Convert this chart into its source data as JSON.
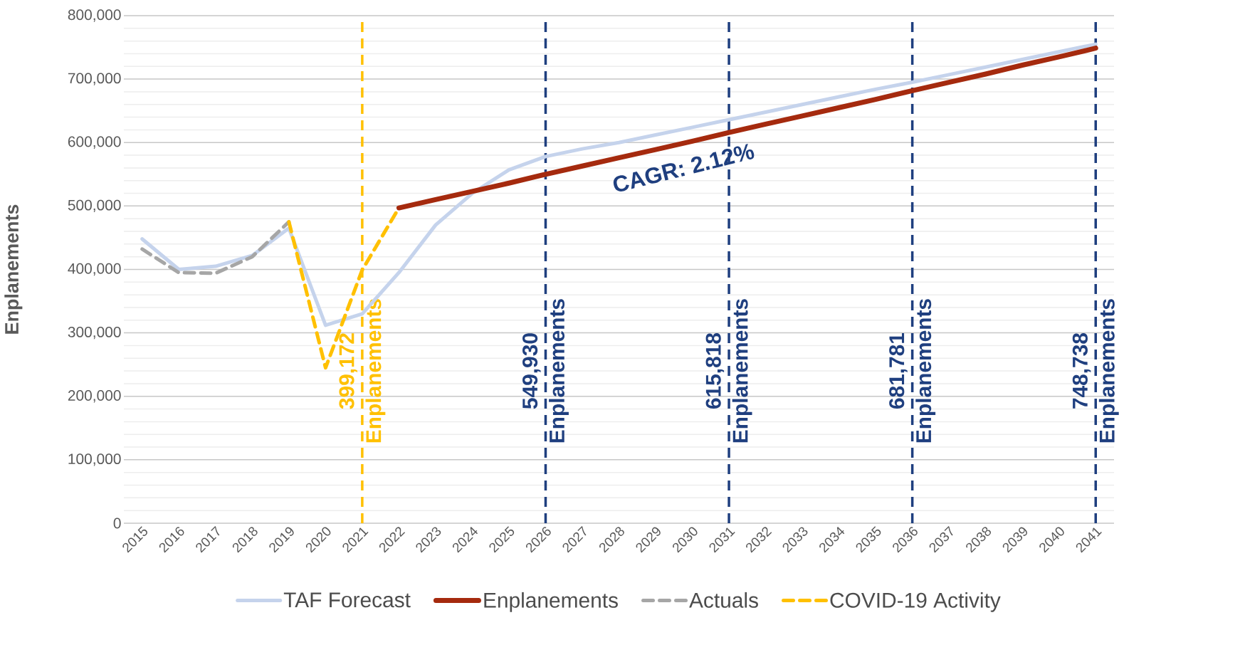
{
  "chart_data": {
    "type": "line",
    "ylabel": "Enplanements",
    "categories": [
      "2015",
      "2016",
      "2017",
      "2018",
      "2019",
      "2020",
      "2021",
      "2022",
      "2023",
      "2024",
      "2025",
      "2026",
      "2027",
      "2028",
      "2029",
      "2030",
      "2031",
      "2032",
      "2033",
      "2034",
      "2035",
      "2036",
      "2037",
      "2038",
      "2039",
      "2040",
      "2041"
    ],
    "series": [
      {
        "name": "TAF Forecast",
        "color": "#c5d3ec",
        "line_style": "solid",
        "values": [
          448000,
          400000,
          405000,
          422000,
          465000,
          312000,
          330000,
          395000,
          470000,
          520000,
          557000,
          578000,
          590000,
          600000,
          612000,
          624000,
          636000,
          648000,
          660000,
          672000,
          684000,
          695000,
          707000,
          719000,
          731000,
          743000,
          755000
        ]
      },
      {
        "name": "Enplanements",
        "color": "#a52a0e",
        "line_style": "solid",
        "values": [
          null,
          null,
          null,
          null,
          null,
          null,
          null,
          497000,
          510000,
          523000,
          536000,
          549930,
          563000,
          576000,
          589000,
          602000,
          615818,
          629000,
          642000,
          655000,
          668000,
          681781,
          695000,
          708000,
          722000,
          735000,
          748738
        ]
      },
      {
        "name": "Actuals",
        "color": "#a6a6a6",
        "line_style": "dashed",
        "values": [
          432000,
          395000,
          394000,
          420000,
          475000,
          null,
          null,
          null,
          null,
          null,
          null,
          null,
          null,
          null,
          null,
          null,
          null,
          null,
          null,
          null,
          null,
          null,
          null,
          null,
          null,
          null,
          null
        ]
      },
      {
        "name": "COVID-19 Activity",
        "color": "#ffc000",
        "line_style": "dashed",
        "values": [
          null,
          null,
          null,
          null,
          475000,
          245000,
          399172,
          497000,
          null,
          null,
          null,
          null,
          null,
          null,
          null,
          null,
          null,
          null,
          null,
          null,
          null,
          null,
          null,
          null,
          null,
          null,
          null
        ]
      }
    ],
    "ylim": [
      0,
      800000
    ],
    "yticks": [
      {
        "value": 0,
        "label": "0"
      },
      {
        "value": 100000,
        "label": "100,000"
      },
      {
        "value": 200000,
        "label": "200,000"
      },
      {
        "value": 300000,
        "label": "300,000"
      },
      {
        "value": 400000,
        "label": "400,000"
      },
      {
        "value": 500000,
        "label": "500,000"
      },
      {
        "value": 600000,
        "label": "600,000"
      },
      {
        "value": 700000,
        "label": "700,000"
      },
      {
        "value": 800000,
        "label": "800,000"
      }
    ],
    "ref_lines": [
      {
        "axis": "x",
        "value": "2021",
        "label": "399,172 Enplanements",
        "color": "#ffc000",
        "line_style": "dashed"
      },
      {
        "axis": "x",
        "value": "2026",
        "label": "549,930 Enplanements",
        "color": "#1f3f7f",
        "line_style": "dashed"
      },
      {
        "axis": "x",
        "value": "2031",
        "label": "615,818 Enplanements",
        "color": "#1f3f7f",
        "line_style": "dashed"
      },
      {
        "axis": "x",
        "value": "2036",
        "label": "681,781 Enplanements",
        "color": "#1f3f7f",
        "line_style": "dashed"
      },
      {
        "axis": "x",
        "value": "2041",
        "label": "748,738 Enplanements",
        "color": "#1f3f7f",
        "line_style": "dashed"
      }
    ],
    "annotations": [
      "CAGR: 2.12%"
    ],
    "grid": "y",
    "legend": "bottom"
  }
}
